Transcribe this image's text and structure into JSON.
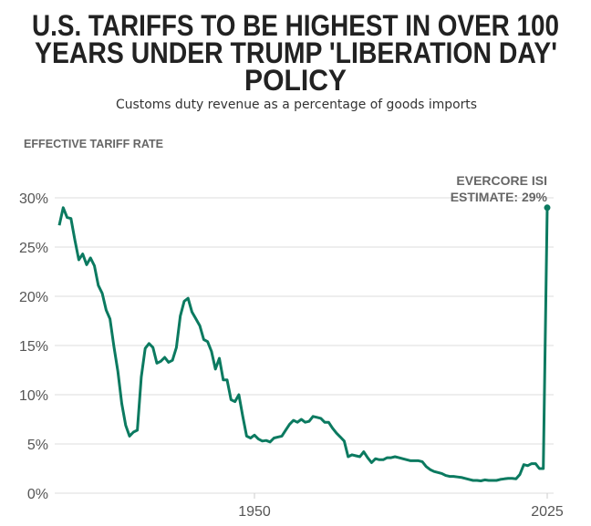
{
  "header": {
    "title_lines": [
      "U.S. TARIFFS TO BE HIGHEST IN OVER 100",
      "YEARS UNDER TRUMP 'LIBERATION DAY'",
      "POLICY"
    ],
    "subtitle": "Customs duty revenue as a percentage of goods imports"
  },
  "chart_data": {
    "type": "line",
    "title": "U.S. TARIFFS TO BE HIGHEST IN OVER 100 YEARS UNDER TRUMP 'LIBERATION DAY' POLICY",
    "subtitle": "Customs duty revenue as a percentage of goods imports",
    "xlabel": "",
    "ylabel": "EFFECTIVE TARIFF RATE",
    "xlim": [
      1900,
      2025
    ],
    "ylim": [
      0,
      30
    ],
    "grid": true,
    "yticks": [
      0,
      5,
      10,
      15,
      20,
      25,
      30
    ],
    "ytick_labels": [
      "0%",
      "5%",
      "10%",
      "15%",
      "20%",
      "25%",
      "30%"
    ],
    "xticks": [
      1950,
      2025
    ],
    "xtick_labels": [
      "1950",
      "2025"
    ],
    "line_color": "#0b7a60",
    "annotation": {
      "lines": [
        "EVERCORE ISI",
        "ESTIMATE: 29%"
      ],
      "x": 2025,
      "y": 29
    },
    "series": [
      {
        "name": "Effective tariff rate",
        "start_year": 1900,
        "values": [
          27.2,
          29.0,
          28.0,
          27.9,
          25.7,
          23.7,
          24.3,
          23.2,
          23.9,
          23.1,
          21.1,
          20.3,
          18.6,
          17.7,
          14.9,
          12.4,
          9.1,
          6.9,
          5.8,
          6.2,
          6.4,
          11.8,
          14.7,
          15.2,
          14.8,
          13.2,
          13.4,
          13.8,
          13.3,
          13.5,
          14.8,
          18.0,
          19.5,
          19.8,
          18.4,
          17.7,
          17.0,
          15.6,
          15.4,
          14.4,
          12.6,
          13.7,
          11.5,
          11.5,
          9.5,
          9.3,
          10.0,
          7.8,
          5.8,
          5.6,
          5.9,
          5.5,
          5.3,
          5.35,
          5.2,
          5.6,
          5.7,
          5.8,
          6.4,
          7.0,
          7.4,
          7.2,
          7.5,
          7.2,
          7.3,
          7.8,
          7.7,
          7.6,
          7.2,
          7.2,
          6.6,
          6.1,
          5.7,
          5.3,
          3.7,
          3.9,
          3.8,
          3.7,
          4.2,
          3.6,
          3.1,
          3.5,
          3.4,
          3.4,
          3.6,
          3.6,
          3.7,
          3.6,
          3.5,
          3.4,
          3.3,
          3.3,
          3.3,
          3.2,
          2.7,
          2.4,
          2.2,
          2.1,
          2.0,
          1.8,
          1.7,
          1.7,
          1.65,
          1.6,
          1.5,
          1.4,
          1.3,
          1.3,
          1.25,
          1.35,
          1.3,
          1.3,
          1.3,
          1.4,
          1.45,
          1.5,
          1.5,
          1.45,
          1.9,
          2.9,
          2.8,
          3.0,
          3.0,
          2.5,
          2.5,
          29.0
        ]
      }
    ]
  }
}
